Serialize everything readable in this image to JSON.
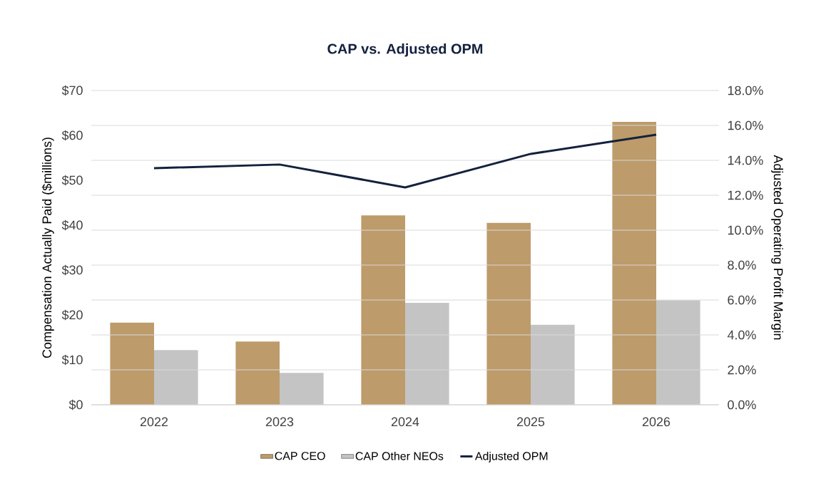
{
  "chart_data": {
    "type": "bar",
    "title": "CAP vs. Adjusted OPM",
    "categories": [
      "2022",
      "2023",
      "2024",
      "2025",
      "2026"
    ],
    "ylabel": "Compensation Actually Paid ($millions)",
    "y2label": "Adjusted Operating Profit Margin",
    "ylim": [
      0,
      70
    ],
    "yticks": [
      {
        "value": 0,
        "label": "$0"
      },
      {
        "value": 10,
        "label": "$10"
      },
      {
        "value": 20,
        "label": "$20"
      },
      {
        "value": 30,
        "label": "$30"
      },
      {
        "value": 40,
        "label": "$40"
      },
      {
        "value": 50,
        "label": "$50"
      },
      {
        "value": 60,
        "label": "$60"
      },
      {
        "value": 70,
        "label": "$70"
      }
    ],
    "y2lim": [
      0,
      18
    ],
    "y2ticks": [
      {
        "value": 0,
        "label": "0.0%"
      },
      {
        "value": 2,
        "label": "2.0%"
      },
      {
        "value": 4,
        "label": "4.0%"
      },
      {
        "value": 6,
        "label": "6.0%"
      },
      {
        "value": 8,
        "label": "8.0%"
      },
      {
        "value": 10,
        "label": "10.0%"
      },
      {
        "value": 12,
        "label": "12.0%"
      },
      {
        "value": 14,
        "label": "14.0%"
      },
      {
        "value": 16,
        "label": "16.0%"
      },
      {
        "value": 18,
        "label": "18.0%"
      }
    ],
    "series": [
      {
        "name": "CAP CEO",
        "color": "#bd9b6b",
        "values": [
          18.3,
          14.1,
          42.2,
          40.5,
          63.0
        ]
      },
      {
        "name": "CAP Other NEOs",
        "color": "#c4c4c4",
        "values": [
          12.2,
          7.1,
          22.7,
          17.8,
          23.3
        ]
      },
      {
        "name": "Adjusted OPM",
        "type": "line",
        "axis": "y2",
        "color": "#14213d",
        "values": [
          13.55,
          13.76,
          12.45,
          14.37,
          15.47
        ]
      }
    ],
    "grid": "y",
    "legend": "bottom"
  }
}
